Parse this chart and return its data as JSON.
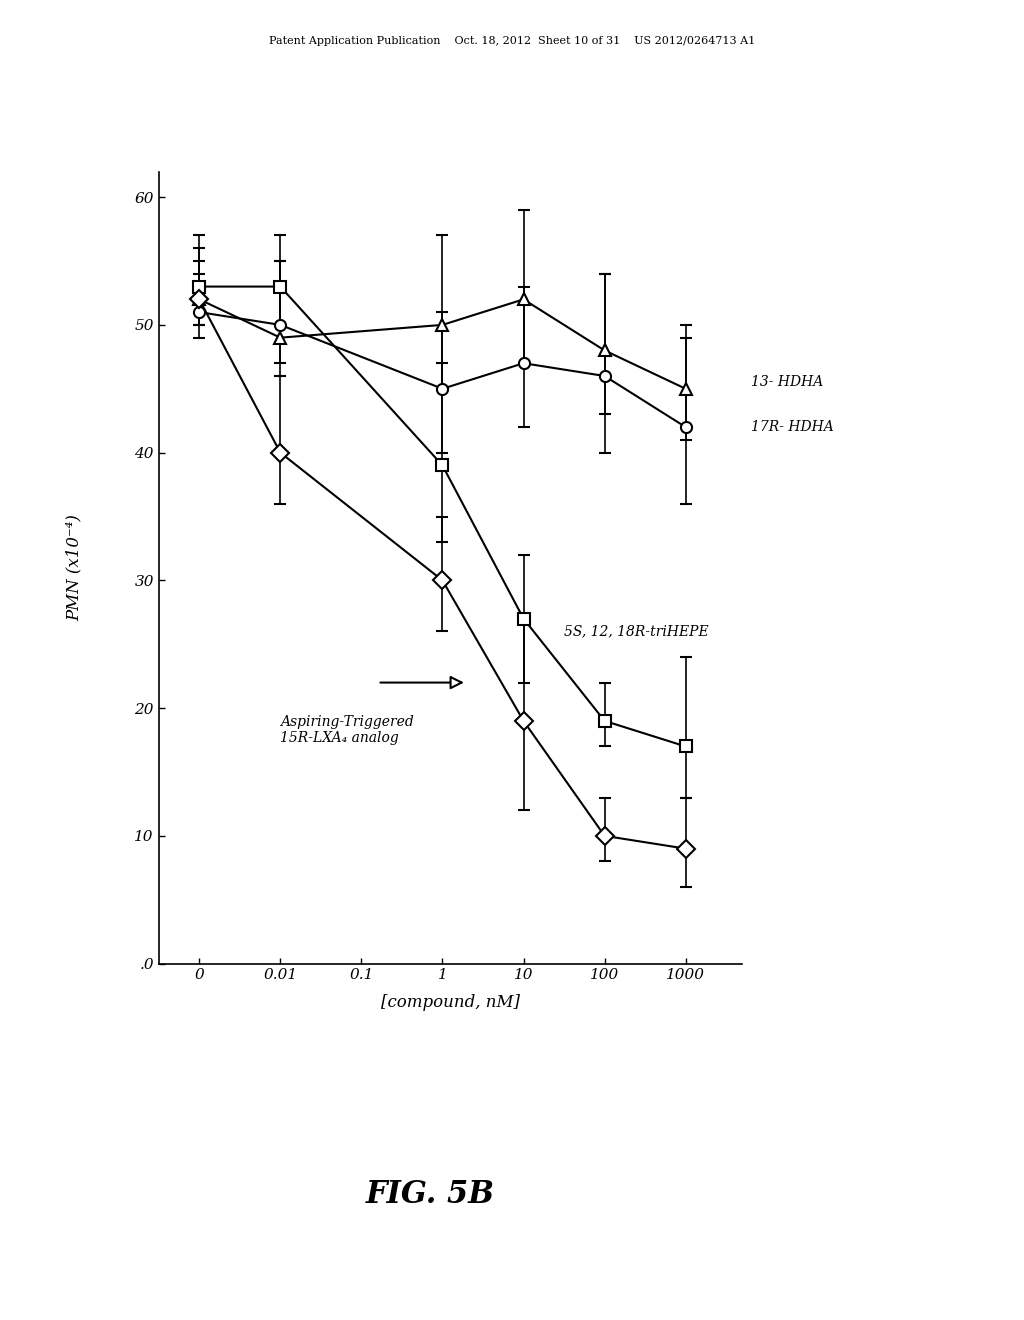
{
  "title_header": "Patent Application Publication    Oct. 18, 2012  Sheet 10 of 31    US 2012/0264713 A1",
  "fig_label": "FIG. 5B",
  "xlabel": "[compound, nM]",
  "ylabel": "PMN (x10⁻⁴)",
  "ylim": [
    0,
    62
  ],
  "yticks": [
    0,
    10,
    20,
    30,
    40,
    50,
    60
  ],
  "xtick_labels": [
    "0",
    "0.01",
    "0.1",
    "1",
    "10",
    "100",
    "1000"
  ],
  "series_13HDHA": {
    "label": "13- HDHA",
    "x_idx": [
      0,
      1,
      3,
      4,
      5,
      6
    ],
    "y": [
      52,
      49,
      50,
      52,
      48,
      45
    ],
    "yerr_lo": [
      2,
      3,
      5,
      5,
      5,
      4
    ],
    "yerr_hi": [
      5,
      6,
      7,
      7,
      6,
      5
    ],
    "marker": "^"
  },
  "series_17RHDHA": {
    "label": "17R- HDHA",
    "x_idx": [
      0,
      1,
      3,
      4,
      5,
      6
    ],
    "y": [
      51,
      50,
      45,
      47,
      46,
      42
    ],
    "yerr_lo": [
      2,
      3,
      5,
      5,
      6,
      6
    ],
    "yerr_hi": [
      3,
      5,
      6,
      6,
      8,
      7
    ],
    "marker": "o"
  },
  "series_triHEPE": {
    "label": "5S, 12, 18R-triHEPE",
    "x_idx": [
      0,
      1,
      3,
      4,
      5,
      6
    ],
    "y": [
      53,
      53,
      39,
      27,
      19,
      17
    ],
    "yerr_lo": [
      2,
      3,
      6,
      5,
      2,
      4
    ],
    "yerr_hi": [
      3,
      4,
      8,
      5,
      3,
      7
    ],
    "marker": "s"
  },
  "series_ATLXa4": {
    "label": "Aspiring-Triggered\n15R-LXA₄ analog",
    "x_idx": [
      0,
      1,
      3,
      4,
      5,
      6
    ],
    "y": [
      52,
      40,
      30,
      19,
      10,
      9
    ],
    "yerr_lo": [
      2,
      4,
      4,
      7,
      2,
      3
    ],
    "yerr_hi": [
      3,
      6,
      5,
      8,
      3,
      4
    ],
    "marker": "D"
  },
  "x_tick_positions": [
    0,
    1,
    2,
    3,
    4,
    5,
    6
  ],
  "background_color": "#ffffff",
  "font_size_ticks": 11,
  "font_size_labels": 12,
  "font_size_fig_label": 22,
  "font_size_header": 8,
  "font_size_annotations": 10
}
